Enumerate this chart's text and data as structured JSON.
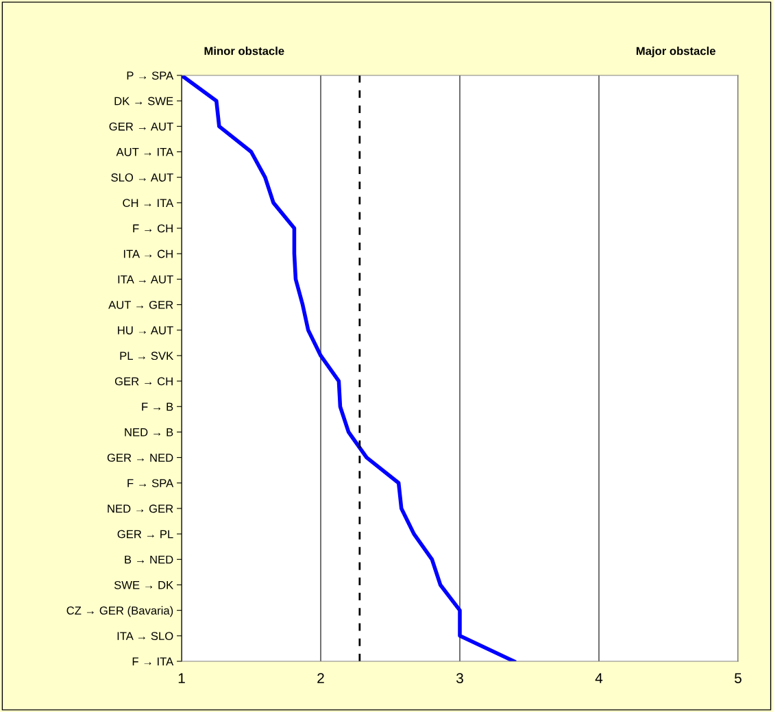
{
  "chart_data": {
    "type": "line",
    "orientation": "horizontal",
    "categories": [
      "P → SPA",
      "DK → SWE",
      "GER → AUT",
      "AUT → ITA",
      "SLO → AUT",
      "CH → ITA",
      "F → CH",
      "ITA → CH",
      "ITA → AUT",
      "AUT → GER",
      "HU → AUT",
      "PL → SVK",
      "GER → CH",
      "F → B",
      "NED → B",
      "GER → NED",
      "F → SPA",
      "NED → GER",
      "GER → PL",
      "B → NED",
      "SWE → DK",
      "CZ → GER (Bavaria)",
      "ITA → SLO",
      "F → ITA"
    ],
    "series": [
      {
        "color": "#0000ff",
        "values": [
          1.0,
          1.25,
          1.27,
          1.5,
          1.6,
          1.66,
          1.81,
          1.81,
          1.82,
          1.87,
          1.91,
          2.0,
          2.13,
          2.14,
          2.2,
          2.33,
          2.56,
          2.58,
          2.67,
          2.8,
          2.86,
          3.0,
          3.0,
          3.39
        ]
      }
    ],
    "xlim": [
      1,
      5
    ],
    "xticks": [
      1,
      2,
      3,
      4,
      5
    ],
    "grid": "x",
    "ref_lines": [
      {
        "axis": "x",
        "value": 2.28,
        "color": "#000000",
        "line_style": "dashed"
      }
    ],
    "annotations": [
      "Minor obstacle",
      "Major obstacle"
    ],
    "legend": false,
    "marker": "none",
    "line_style": "solid"
  }
}
